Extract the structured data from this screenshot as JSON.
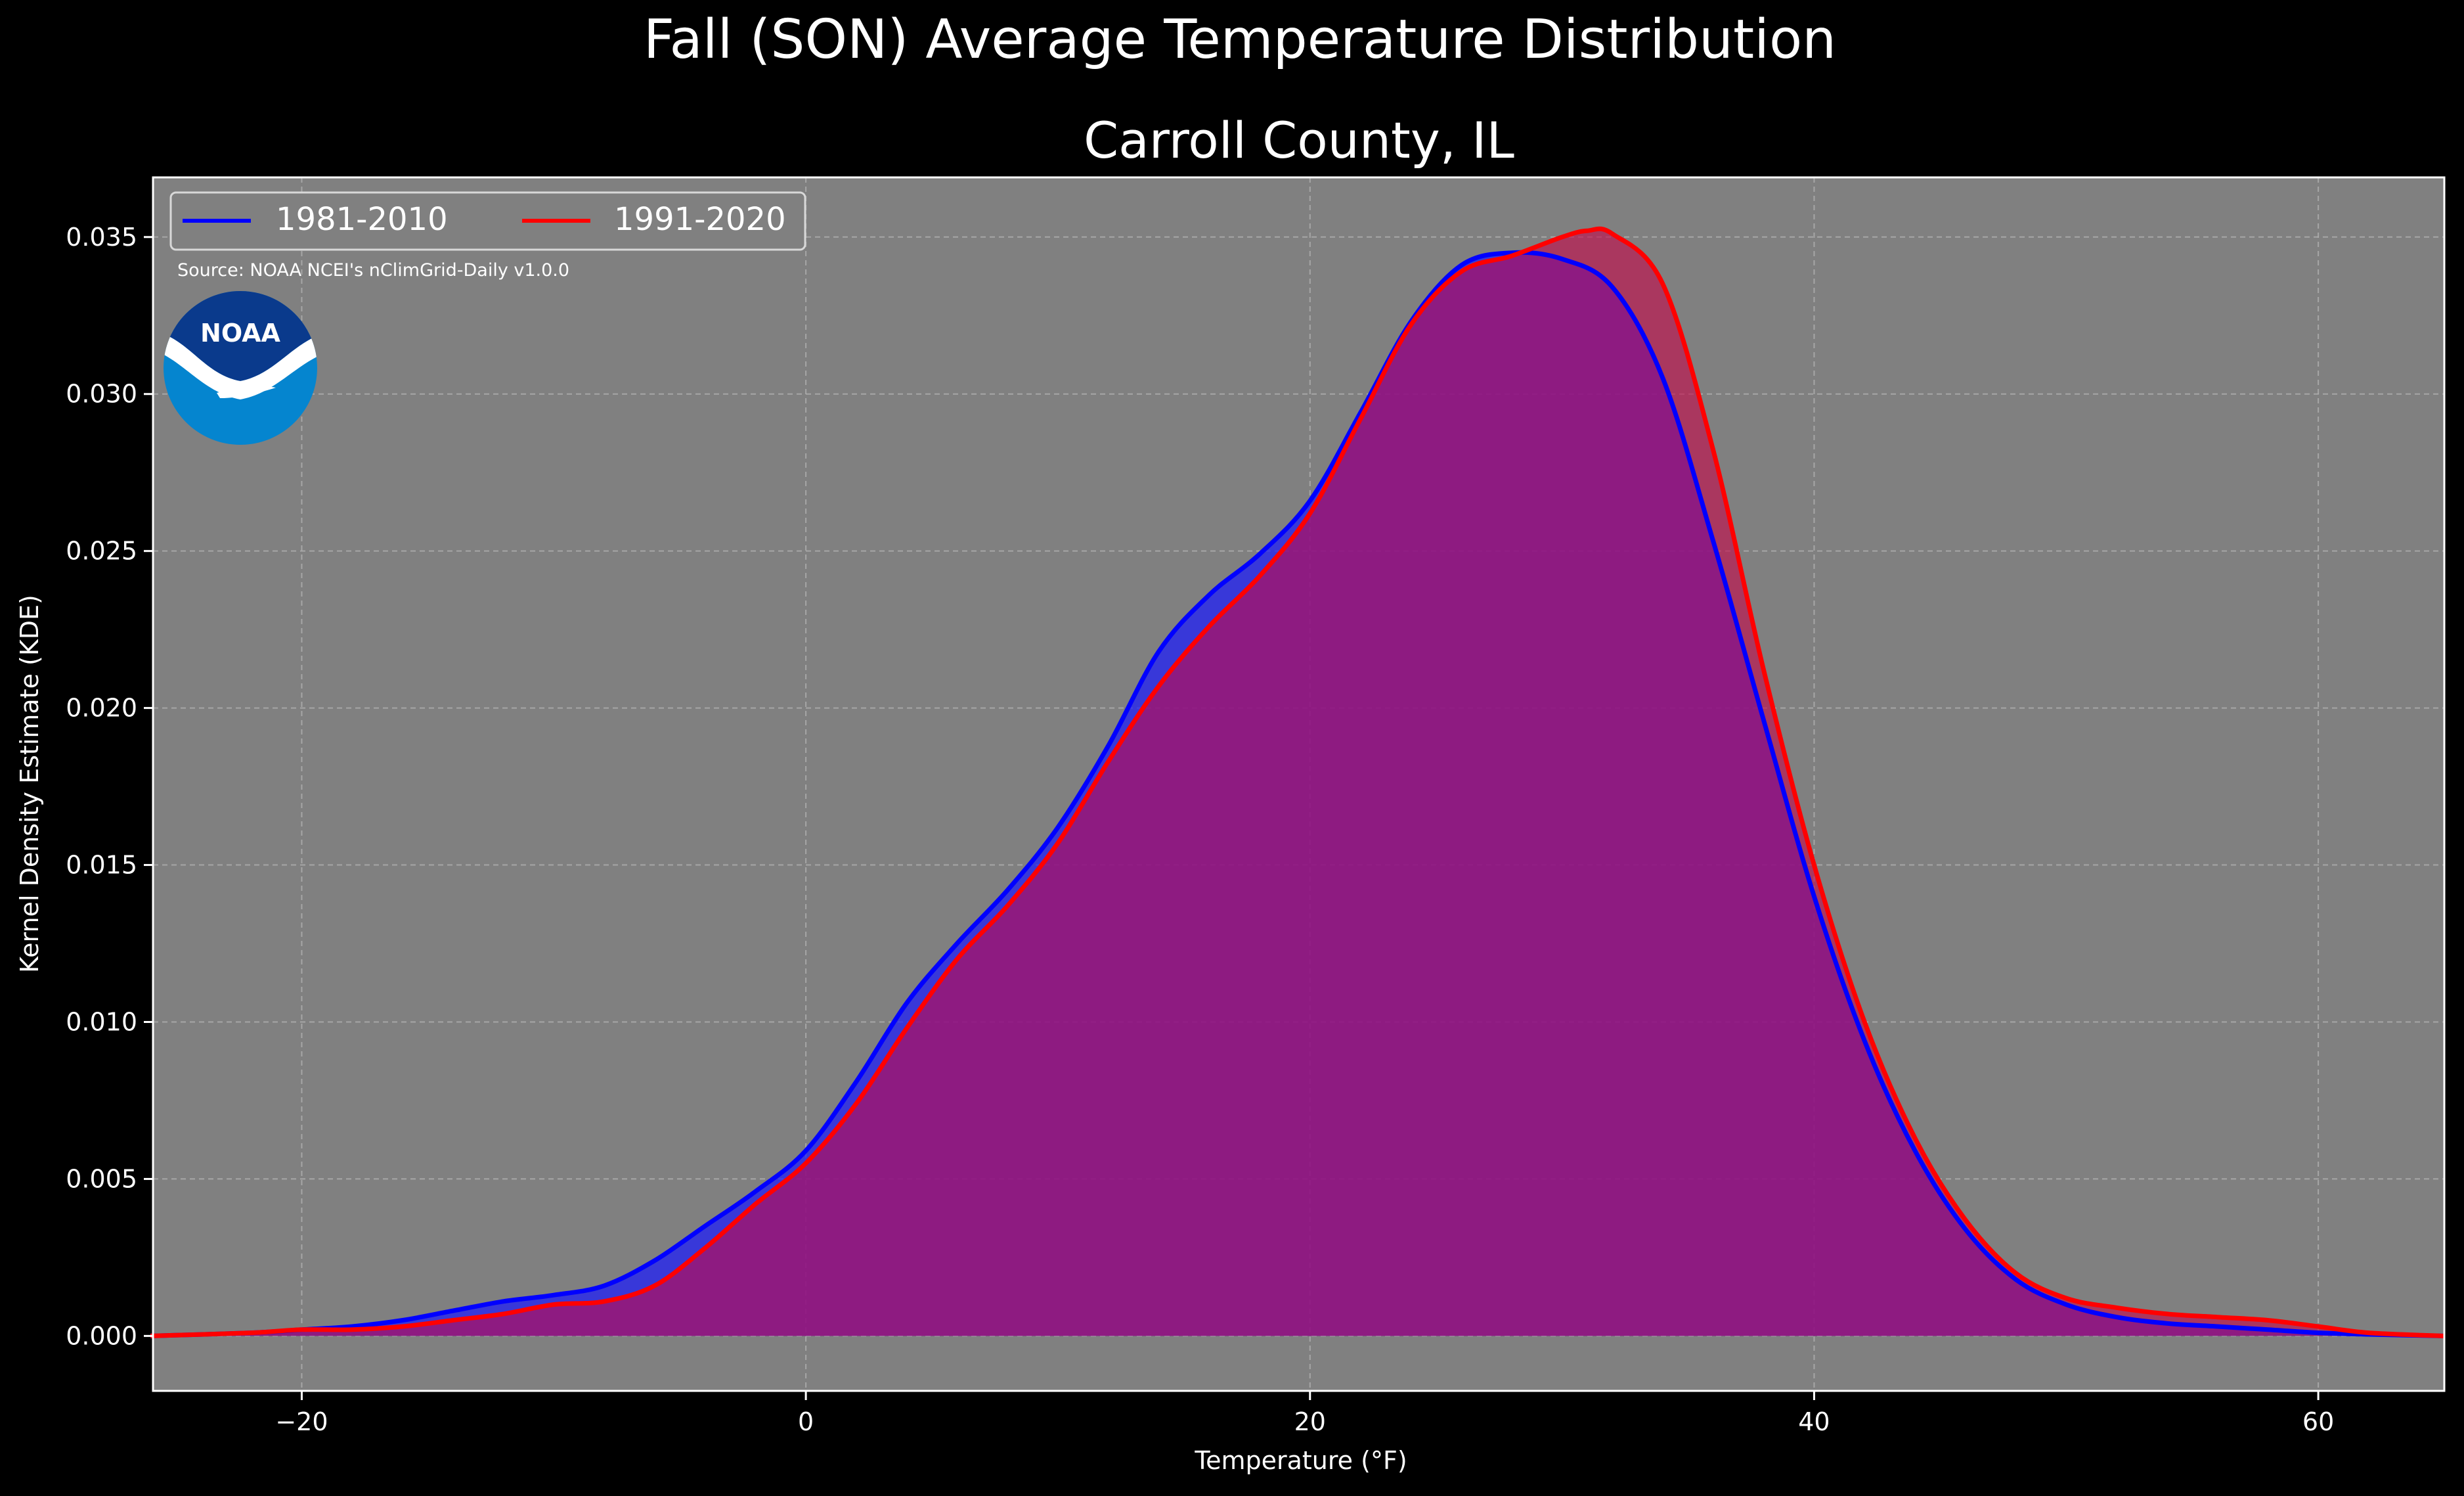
{
  "figure": {
    "suptitle": "Fall (SON) Average Temperature Distribution",
    "title": "Carroll County, IL",
    "source_note": "Source: NOAA NCEI's nClimGrid-Daily v1.0.0",
    "logo_text": "NOAA"
  },
  "colors": {
    "background": "#000000",
    "plot_bg": "#808080",
    "series_1981": "#0000ff",
    "series_1991": "#ff0000",
    "fill_1981": "#1a1aff",
    "fill_1991": "#c40a4a",
    "text": "#ffffff",
    "logo_dark": "#0a3a8c",
    "logo_light": "#0585cf"
  },
  "chart_data": {
    "type": "area",
    "xlabel": "Temperature (°F)",
    "ylabel": "Kernel Density Estimate (KDE)",
    "xlim": [
      -25.9,
      65
    ],
    "ylim": [
      -0.00175,
      0.0369
    ],
    "xticks": [
      -20,
      0,
      20,
      40,
      60
    ],
    "xtick_labels": [
      "−20",
      "0",
      "20",
      "40",
      "60"
    ],
    "yticks": [
      0.0,
      0.005,
      0.01,
      0.015,
      0.02,
      0.025,
      0.03,
      0.035
    ],
    "ytick_labels": [
      "0.000",
      "0.005",
      "0.010",
      "0.015",
      "0.020",
      "0.025",
      "0.030",
      "0.035"
    ],
    "grid": true,
    "legend_position": "upper-left",
    "series": [
      {
        "name": "1981-2010",
        "x": [
          -26,
          -22,
          -20,
          -18,
          -16,
          -14,
          -12,
          -10,
          -8,
          -6,
          -4,
          -2,
          0,
          2,
          4,
          6,
          8,
          10,
          12,
          14,
          16,
          18,
          20,
          22,
          24,
          26,
          28,
          30,
          32,
          34,
          36,
          38,
          40,
          42,
          44,
          46,
          48,
          50,
          52,
          54,
          56,
          58,
          60,
          62,
          65
        ],
        "y": [
          0.0,
          0.0001,
          0.0002,
          0.0003,
          0.0005,
          0.0008,
          0.0011,
          0.0013,
          0.0016,
          0.0024,
          0.0035,
          0.0046,
          0.0059,
          0.0081,
          0.0106,
          0.0125,
          0.0142,
          0.0162,
          0.0188,
          0.0218,
          0.0236,
          0.0249,
          0.0266,
          0.0294,
          0.0323,
          0.0341,
          0.0345,
          0.0343,
          0.0334,
          0.0305,
          0.0253,
          0.0196,
          0.014,
          0.0094,
          0.0059,
          0.0034,
          0.0018,
          0.001,
          0.0006,
          0.0004,
          0.0003,
          0.0002,
          0.0001,
          5e-05,
          0.0
        ]
      },
      {
        "name": "1991-2020",
        "x": [
          -26,
          -22,
          -20,
          -18,
          -16,
          -14,
          -12,
          -10,
          -8,
          -6,
          -4,
          -2,
          0,
          2,
          4,
          6,
          8,
          10,
          12,
          14,
          16,
          18,
          20,
          22,
          24,
          26,
          28,
          30,
          31,
          32,
          34,
          36,
          38,
          40,
          42,
          44,
          46,
          48,
          50,
          52,
          54,
          56,
          58,
          60,
          62,
          65
        ],
        "y": [
          0.0,
          0.0001,
          0.0002,
          0.0002,
          0.0003,
          0.0005,
          0.0007,
          0.001,
          0.0011,
          0.0016,
          0.0028,
          0.0042,
          0.0055,
          0.0074,
          0.0098,
          0.012,
          0.0137,
          0.0157,
          0.0183,
          0.0207,
          0.0226,
          0.0242,
          0.0262,
          0.0292,
          0.0322,
          0.0339,
          0.0344,
          0.035,
          0.0352,
          0.0351,
          0.0335,
          0.0282,
          0.0212,
          0.015,
          0.01,
          0.0063,
          0.0037,
          0.002,
          0.0012,
          0.0009,
          0.0007,
          0.0006,
          0.0005,
          0.0003,
          0.0001,
          0.0
        ]
      }
    ]
  }
}
